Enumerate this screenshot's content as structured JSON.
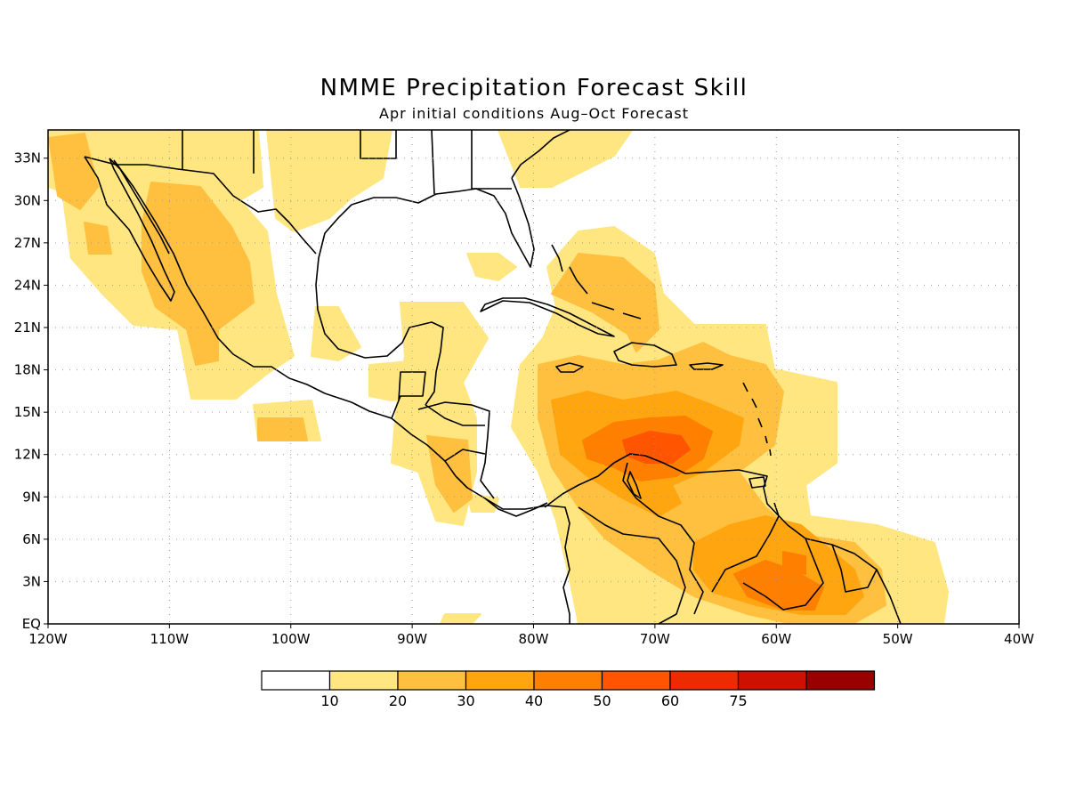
{
  "title": "NMME Precipitation Forecast Skill",
  "subtitle": "Apr initial conditions  Aug–Oct Forecast",
  "lat_labels": [
    "EQ",
    "3N",
    "6N",
    "9N",
    "12N",
    "15N",
    "18N",
    "21N",
    "24N",
    "27N",
    "30N",
    "33N"
  ],
  "lon_labels": [
    "120W",
    "110W",
    "100W",
    "90W",
    "80W",
    "70W",
    "60W",
    "50W",
    "40W"
  ],
  "colorbar": {
    "labels": [
      "10",
      "20",
      "30",
      "40",
      "50",
      "60",
      "75"
    ],
    "colors": [
      "#ffffff",
      "#ffe680",
      "#ffc040",
      "#ffa510",
      "#ff8000",
      "#ff5500",
      "#ee2a00",
      "#cc1100",
      "#990000"
    ]
  }
}
